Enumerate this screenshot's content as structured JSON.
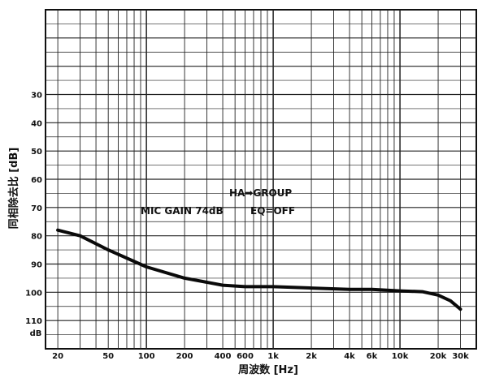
{
  "chart_data": {
    "type": "line",
    "title": "",
    "xlabel": "周波数 [Hz]",
    "ylabel": "同相除去比 [dB]",
    "x_scale": "log",
    "y_inverted": true,
    "xlim": [
      16,
      40000
    ],
    "ylim": [
      0,
      120
    ],
    "grid": true,
    "x_ticks": [
      {
        "v": 20,
        "label": "20"
      },
      {
        "v": 50,
        "label": "50"
      },
      {
        "v": 100,
        "label": "100"
      },
      {
        "v": 200,
        "label": "200"
      },
      {
        "v": 400,
        "label": "400"
      },
      {
        "v": 600,
        "label": "600"
      },
      {
        "v": 1000,
        "label": "1k"
      },
      {
        "v": 2000,
        "label": "2k"
      },
      {
        "v": 4000,
        "label": "4k"
      },
      {
        "v": 6000,
        "label": "6k"
      },
      {
        "v": 10000,
        "label": "10k"
      },
      {
        "v": 20000,
        "label": "20k"
      },
      {
        "v": 30000,
        "label": "30k"
      }
    ],
    "y_ticks": [
      {
        "v": 30,
        "label": "30"
      },
      {
        "v": 40,
        "label": "40"
      },
      {
        "v": 50,
        "label": "50"
      },
      {
        "v": 60,
        "label": "60"
      },
      {
        "v": 70,
        "label": "70"
      },
      {
        "v": 80,
        "label": "80"
      },
      {
        "v": 90,
        "label": "90"
      },
      {
        "v": 100,
        "label": "100"
      },
      {
        "v": 110,
        "label": "110"
      }
    ],
    "y_unit": "dB",
    "annotations": [
      "HA➡GROUP",
      "MIC GAIN 74dB",
      "EQ=OFF"
    ],
    "series": [
      {
        "x": [
          20,
          30,
          50,
          100,
          200,
          400,
          600,
          1000,
          2000,
          4000,
          6000,
          10000,
          15000,
          20000,
          25000,
          30000
        ],
        "y": [
          78,
          80,
          85,
          91,
          95,
          97.5,
          98,
          98,
          98.5,
          99,
          99,
          99.5,
          99.8,
          101,
          103,
          106
        ]
      }
    ]
  }
}
